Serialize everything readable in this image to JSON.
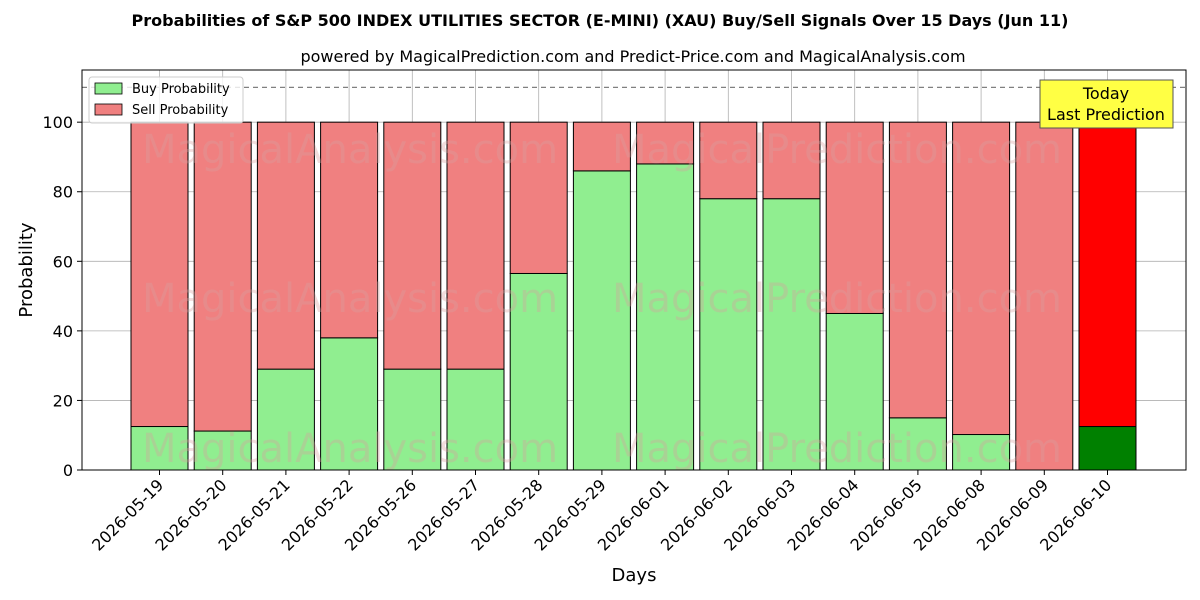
{
  "chart_data": {
    "type": "bar",
    "stacked": true,
    "title": "Probabilities of S&P 500 INDEX UTILITIES SECTOR (E-MINI) (XAU) Buy/Sell Signals Over 15 Days (Jun 11)",
    "subtitle": "powered by MagicalPrediction.com and Predict-Price.com and MagicalAnalysis.com",
    "xlabel": "Days",
    "ylabel": "Probability",
    "ylim": [
      0,
      115
    ],
    "yticks": [
      0,
      20,
      40,
      60,
      80,
      100
    ],
    "reference_line": 110,
    "grid": true,
    "legend_position": "top-left",
    "categories": [
      "2026-05-19",
      "2026-05-20",
      "2026-05-21",
      "2026-05-22",
      "2026-05-26",
      "2026-05-27",
      "2026-05-28",
      "2026-05-29",
      "2026-06-01",
      "2026-06-02",
      "2026-06-03",
      "2026-06-04",
      "2026-06-05",
      "2026-06-08",
      "2026-06-09",
      "2026-06-10"
    ],
    "series": [
      {
        "name": "Buy Probability",
        "color": "#90ee90",
        "values": [
          12.5,
          11.2,
          29,
          38,
          29,
          29,
          56.5,
          86,
          88,
          78,
          78,
          45,
          15,
          10.2,
          0,
          12.5
        ]
      },
      {
        "name": "Sell Probability",
        "color": "#f08080",
        "values": [
          87.5,
          88.8,
          71,
          62,
          71,
          71,
          43.5,
          14,
          12,
          22,
          22,
          55,
          85,
          89.8,
          100,
          87.5
        ]
      }
    ],
    "highlight": {
      "index": 15,
      "buy_color": "#008000",
      "sell_color": "#ff0000"
    },
    "annotation": {
      "line1": "Today",
      "line2": "Last Prediction",
      "color": "#ffff44"
    },
    "watermarks": [
      "MagicalAnalysis.com",
      "MagicalPrediction.com"
    ]
  }
}
